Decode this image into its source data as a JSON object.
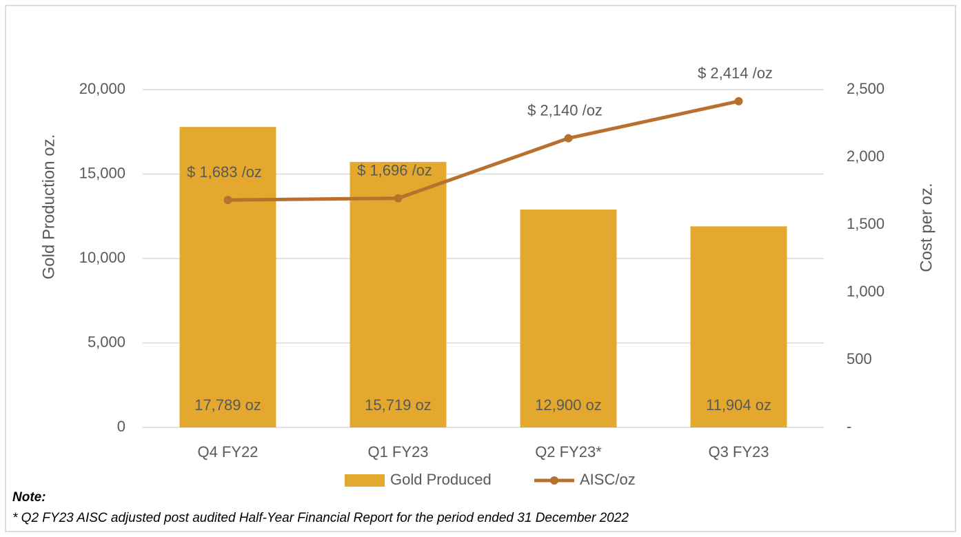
{
  "chart_data": {
    "type": "combo",
    "y_label": "Gold Production oz.",
    "y2_label": "Cost per oz.",
    "categories": [
      "Q4 FY22",
      "Q1 FY23",
      "Q2 FY23*",
      "Q3 FY23"
    ],
    "series": [
      {
        "name": "Gold Produced",
        "type": "bar",
        "color": "#e3a82d",
        "values": [
          17789,
          15719,
          12900,
          11904
        ],
        "value_labels": [
          "17,789 oz",
          "15,719 oz",
          "12,900 oz",
          "11,904 oz"
        ]
      },
      {
        "name": "AISC/oz",
        "type": "line",
        "axis": "y2",
        "color": "#b8702f",
        "values": [
          1683,
          1696,
          2140,
          2414
        ],
        "value_labels": [
          "$ 1,683 /oz",
          "$ 1,696 /oz",
          "$ 2,140 /oz",
          "$ 2,414 /oz"
        ]
      }
    ],
    "ylim": [
      0,
      20000
    ],
    "yticks": [
      0,
      {
        "value": 5000,
        "label": "5,000"
      },
      {
        "value": 10000,
        "label": "10,000"
      },
      {
        "value": 15000,
        "label": "15,000"
      },
      {
        "value": 20000,
        "label": "20,000"
      }
    ],
    "y2lim": [
      0,
      2500
    ],
    "y2ticks": [
      {
        "value": 0,
        "label": "-"
      },
      500,
      {
        "value": 1000,
        "label": "1,000"
      },
      {
        "value": 1500,
        "label": "1,500"
      },
      {
        "value": 2000,
        "label": "2,000"
      },
      {
        "value": 2500,
        "label": "2,500"
      }
    ],
    "grid": true,
    "legend": "bottom",
    "note_title": "Note:",
    "note": "* Q2 FY23 AISC adjusted post audited Half-Year Financial Report for the period ended 31 December 2022"
  }
}
